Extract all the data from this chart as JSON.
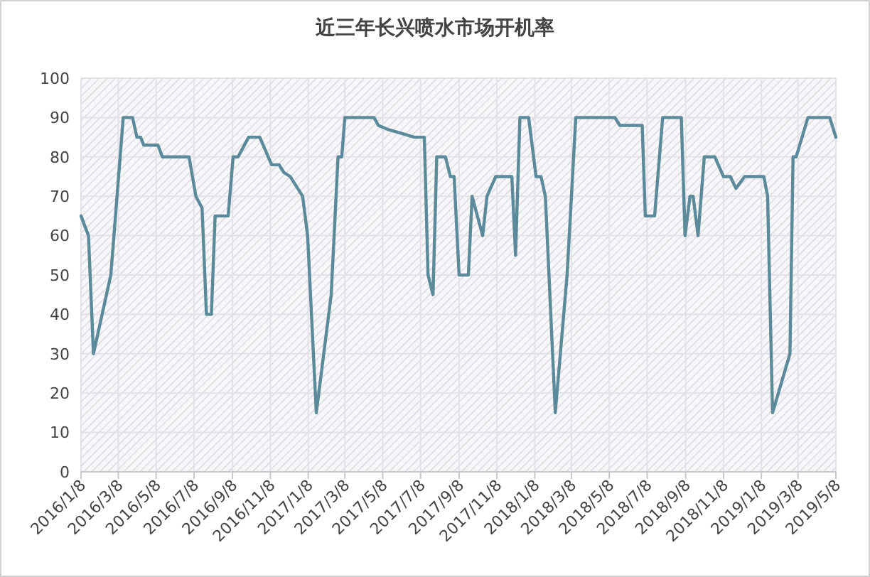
{
  "chart_data": {
    "type": "line",
    "title": "近三年长兴喷水市场开机率",
    "x": [
      "2016-01-08",
      "2016-01-20",
      "2016-01-28",
      "2016-02-25",
      "2016-03-16",
      "2016-03-31",
      "2016-04-07",
      "2016-04-13",
      "2016-04-18",
      "2016-05-11",
      "2016-05-18",
      "2016-06-30",
      "2016-07-11",
      "2016-07-21",
      "2016-07-28",
      "2016-08-05",
      "2016-08-11",
      "2016-09-01",
      "2016-09-09",
      "2016-09-17",
      "2016-10-04",
      "2016-10-22",
      "2016-11-10",
      "2016-11-22",
      "2016-11-30",
      "2016-12-10",
      "2016-12-22",
      "2016-12-30",
      "2017-01-07",
      "2017-01-21",
      "2017-02-14",
      "2017-02-25",
      "2017-03-03",
      "2017-03-08",
      "2017-04-24",
      "2017-05-01",
      "2017-05-16",
      "2017-06-07",
      "2017-06-28",
      "2017-07-14",
      "2017-07-20",
      "2017-07-28",
      "2017-08-03",
      "2017-08-17",
      "2017-08-25",
      "2017-08-31",
      "2017-09-08",
      "2017-09-23",
      "2017-09-29",
      "2017-10-16",
      "2017-10-23",
      "2017-11-06",
      "2017-12-02",
      "2017-12-08",
      "2017-12-15",
      "2017-12-29",
      "2018-01-10",
      "2018-01-18",
      "2018-01-25",
      "2018-02-10",
      "2018-03-01",
      "2018-03-15",
      "2018-05-17",
      "2018-05-25",
      "2018-06-30",
      "2018-07-05",
      "2018-07-20",
      "2018-08-02",
      "2018-09-01",
      "2018-09-07",
      "2018-09-15",
      "2018-09-20",
      "2018-09-28",
      "2018-10-08",
      "2018-10-25",
      "2018-11-08",
      "2018-11-19",
      "2018-11-28",
      "2018-12-12",
      "2019-01-12",
      "2019-01-18",
      "2019-01-26",
      "2019-02-23",
      "2019-02-28",
      "2019-03-05",
      "2019-03-24",
      "2019-04-28",
      "2019-05-08"
    ],
    "series": [
      {
        "color": "#5b8a9a",
        "values": [
          65,
          60,
          30,
          50,
          90,
          90,
          85,
          85,
          83,
          83,
          80,
          80,
          70,
          67,
          40,
          40,
          65,
          65,
          80,
          80,
          85,
          85,
          78,
          78,
          76,
          75,
          72,
          70,
          60,
          15,
          45,
          80,
          80,
          90,
          90,
          88,
          87,
          86,
          85,
          85,
          50,
          45,
          80,
          80,
          75,
          75,
          50,
          50,
          70,
          60,
          70,
          75,
          75,
          55,
          90,
          90,
          75,
          75,
          70,
          15,
          50,
          90,
          90,
          88,
          88,
          65,
          65,
          90,
          90,
          60,
          70,
          70,
          60,
          80,
          80,
          75,
          75,
          72,
          75,
          75,
          70,
          15,
          30,
          80,
          80,
          90,
          90,
          85
        ]
      }
    ],
    "xlim": [
      "2016-01-08",
      "2019-05-08"
    ],
    "xticks": [
      {
        "value": "2016-01-08",
        "label": "2016/1/8"
      },
      {
        "value": "2016-03-08",
        "label": "2016/3/8"
      },
      {
        "value": "2016-05-08",
        "label": "2016/5/8"
      },
      {
        "value": "2016-07-08",
        "label": "2016/7/8"
      },
      {
        "value": "2016-09-08",
        "label": "2016/9/8"
      },
      {
        "value": "2016-11-08",
        "label": "2016/11/8"
      },
      {
        "value": "2017-01-08",
        "label": "2017/1/8"
      },
      {
        "value": "2017-03-08",
        "label": "2017/3/8"
      },
      {
        "value": "2017-05-08",
        "label": "2017/5/8"
      },
      {
        "value": "2017-07-08",
        "label": "2017/7/8"
      },
      {
        "value": "2017-09-08",
        "label": "2017/9/8"
      },
      {
        "value": "2017-11-08",
        "label": "2017/11/8"
      },
      {
        "value": "2018-01-08",
        "label": "2018/1/8"
      },
      {
        "value": "2018-03-08",
        "label": "2018/3/8"
      },
      {
        "value": "2018-05-08",
        "label": "2018/5/8"
      },
      {
        "value": "2018-07-08",
        "label": "2018/7/8"
      },
      {
        "value": "2018-09-08",
        "label": "2018/9/8"
      },
      {
        "value": "2018-11-08",
        "label": "2018/11/8"
      },
      {
        "value": "2019-01-08",
        "label": "2019/1/8"
      },
      {
        "value": "2019-03-08",
        "label": "2019/3/8"
      },
      {
        "value": "2019-05-08",
        "label": "2019/5/8"
      }
    ],
    "ylim": [
      0,
      100
    ],
    "yticks": [
      0,
      10,
      20,
      30,
      40,
      50,
      60,
      70,
      80,
      90,
      100
    ],
    "grid": true,
    "marker": "none",
    "line_style": "solid"
  }
}
